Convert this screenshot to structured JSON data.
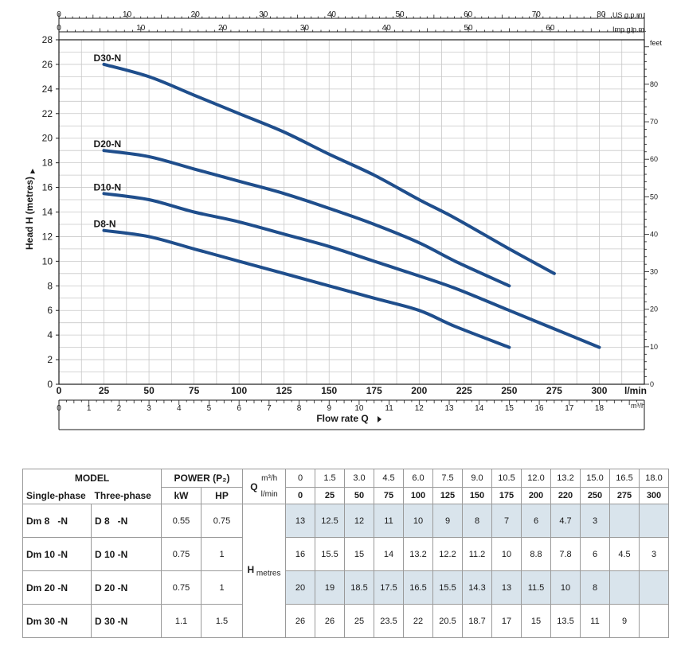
{
  "chart_data": {
    "type": "line",
    "ylabel": "Head H (metres)",
    "xlabel": "Flow rate Q",
    "x_unit": "l/min",
    "xlim": [
      0,
      325
    ],
    "ylim": [
      0,
      28
    ],
    "grid": true,
    "y_ticks": [
      0,
      2,
      4,
      6,
      8,
      10,
      12,
      14,
      16,
      18,
      20,
      22,
      24,
      26,
      28
    ],
    "x_ticks": [
      0,
      25,
      50,
      75,
      100,
      125,
      150,
      175,
      200,
      225,
      250,
      275,
      300
    ],
    "secondary_axes": {
      "us_gpm": {
        "label": "US g.p.m.",
        "ticks": [
          0,
          10,
          20,
          30,
          40,
          50,
          60,
          70,
          80
        ]
      },
      "imp_gpm": {
        "label": "Imp g.p.m.",
        "ticks": [
          0,
          10,
          20,
          30,
          40,
          50,
          60
        ]
      },
      "m3h": {
        "label": "m³/h",
        "ticks": [
          0,
          1,
          2,
          3,
          4,
          5,
          6,
          7,
          8,
          9,
          10,
          11,
          12,
          13,
          14,
          15,
          16,
          17,
          18
        ]
      },
      "feet": {
        "label": "feet",
        "ticks": [
          0,
          10,
          20,
          30,
          40,
          50,
          60,
          70,
          80
        ]
      }
    },
    "series": [
      {
        "name": "D30-N",
        "x": [
          25,
          50,
          75,
          100,
          125,
          150,
          175,
          200,
          220,
          250,
          275
        ],
        "y": [
          26,
          25,
          23.5,
          22,
          20.5,
          18.7,
          17,
          15,
          13.5,
          11,
          9
        ]
      },
      {
        "name": "D20-N",
        "x": [
          25,
          50,
          75,
          100,
          125,
          150,
          175,
          200,
          220,
          250
        ],
        "y": [
          19,
          18.5,
          17.5,
          16.5,
          15.5,
          14.3,
          13,
          11.5,
          10,
          8
        ]
      },
      {
        "name": "D10-N",
        "x": [
          25,
          50,
          75,
          100,
          125,
          150,
          175,
          200,
          220,
          250,
          275,
          300
        ],
        "y": [
          15.5,
          15,
          14,
          13.2,
          12.2,
          11.2,
          10,
          8.8,
          7.8,
          6,
          4.5,
          3
        ]
      },
      {
        "name": "D8-N",
        "x": [
          25,
          50,
          75,
          100,
          125,
          150,
          175,
          200,
          220,
          250
        ],
        "y": [
          12.5,
          12,
          11,
          10,
          9,
          8,
          7,
          6,
          4.7,
          3
        ]
      }
    ],
    "line_color": "#1f4e8c"
  },
  "table": {
    "header": {
      "model": "MODEL",
      "single_phase": "Single-phase",
      "three_phase": "Three-phase",
      "power": "POWER (P₂)",
      "kw": "kW",
      "hp": "HP",
      "q": "Q",
      "m3h_unit": "m³/h",
      "lmin_unit": "l/min",
      "h": "H",
      "h_unit": "metres"
    },
    "m3h": [
      "0",
      "1.5",
      "3.0",
      "4.5",
      "6.0",
      "7.5",
      "9.0",
      "10.5",
      "12.0",
      "13.2",
      "15.0",
      "16.5",
      "18.0"
    ],
    "lmin": [
      "0",
      "25",
      "50",
      "75",
      "100",
      "125",
      "150",
      "175",
      "200",
      "220",
      "250",
      "275",
      "300"
    ],
    "rows": [
      {
        "single": "Dm 8   -N",
        "three": "D 8   -N",
        "kw": "0.55",
        "hp": "0.75",
        "h": [
          "13",
          "12.5",
          "12",
          "11",
          "10",
          "9",
          "8",
          "7",
          "6",
          "4.7",
          "3",
          "",
          ""
        ]
      },
      {
        "single": "Dm 10 -N",
        "three": "D 10 -N",
        "kw": "0.75",
        "hp": "1",
        "h": [
          "16",
          "15.5",
          "15",
          "14",
          "13.2",
          "12.2",
          "11.2",
          "10",
          "8.8",
          "7.8",
          "6",
          "4.5",
          "3"
        ]
      },
      {
        "single": "Dm 20 -N",
        "three": "D 20 -N",
        "kw": "0.75",
        "hp": "1",
        "h": [
          "20",
          "19",
          "18.5",
          "17.5",
          "16.5",
          "15.5",
          "14.3",
          "13",
          "11.5",
          "10",
          "8",
          "",
          ""
        ]
      },
      {
        "single": "Dm 30 -N",
        "three": "D 30 -N",
        "kw": "1.1",
        "hp": "1.5",
        "h": [
          "26",
          "26",
          "25",
          "23.5",
          "22",
          "20.5",
          "18.7",
          "17",
          "15",
          "13.5",
          "11",
          "9",
          ""
        ]
      }
    ]
  }
}
